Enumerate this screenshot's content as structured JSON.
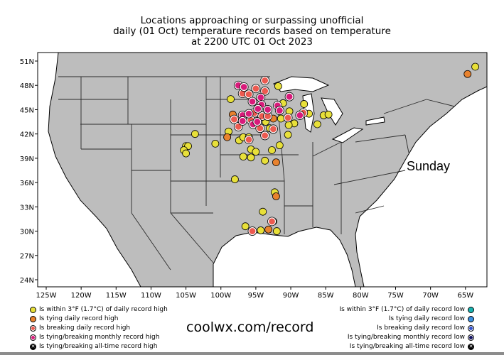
{
  "title": [
    "Locations approaching or surpassing unofficial",
    "daily (01 Oct) temperature records based on temperature",
    "at 2200 UTC 01 Oct 2023"
  ],
  "day_label": "Sunday",
  "brand": "coolwx.com/record",
  "lat_ticks": [
    "51N",
    "48N",
    "45N",
    "42N",
    "39N",
    "36N",
    "33N",
    "30N",
    "27N",
    "24N"
  ],
  "lat_values": [
    51,
    48,
    45,
    42,
    39,
    36,
    33,
    30,
    27,
    24
  ],
  "lon_ticks": [
    "125W",
    "120W",
    "115W",
    "110W",
    "105W",
    "100W",
    "95W",
    "90W",
    "85W",
    "80W",
    "75W",
    "70W",
    "65W"
  ],
  "lon_values": [
    -125,
    -120,
    -115,
    -110,
    -105,
    -100,
    -95,
    -90,
    -85,
    -80,
    -75,
    -70,
    -65
  ],
  "colors": {
    "land": "#bdbdbd",
    "water": "#ffffff",
    "near_high": "#e8e03a",
    "tie_high": "#e8822e",
    "break_high": "#ec5a50",
    "month_high": "#d81b7a",
    "near_low": "#19b3b0",
    "tie_low": "#3b8fe0",
    "break_low": "#2f50d0",
    "month_low": "#101060"
  },
  "legend_high": [
    {
      "label": "Is within 3°F (1.7°C) of daily record high",
      "type": "near_high"
    },
    {
      "label": "Is tying daily record high",
      "type": "tie_high"
    },
    {
      "label": "Is breaking daily record high",
      "type": "break_high"
    },
    {
      "label": "Is tying/breaking monthly record high",
      "type": "month_high"
    },
    {
      "label": "Is tying/breaking all-time record high",
      "type": "alltime"
    }
  ],
  "legend_low": [
    {
      "label": "Is within 3°F (1.7°C) of daily record low",
      "type": "near_low"
    },
    {
      "label": "Is tying daily record low",
      "type": "tie_low"
    },
    {
      "label": "Is breaking daily record low",
      "type": "break_low"
    },
    {
      "label": "Is tying/breaking monthly record low",
      "type": "month_low"
    },
    {
      "label": "Is tying/breaking all-time record low",
      "type": "alltime"
    }
  ],
  "stations": [
    [
      -103.7,
      42.0,
      "near_high"
    ],
    [
      -105.0,
      40.5,
      "near_high"
    ],
    [
      -104.7,
      40.5,
      "near_high"
    ],
    [
      -105.3,
      40.0,
      "near_high"
    ],
    [
      -105.0,
      39.6,
      "near_high"
    ],
    [
      -100.8,
      40.8,
      "near_high"
    ],
    [
      -98.6,
      46.3,
      "near_high"
    ],
    [
      -98.9,
      42.3,
      "near_high"
    ],
    [
      -97.4,
      41.2,
      "near_high"
    ],
    [
      -96.8,
      41.6,
      "near_high"
    ],
    [
      -96.0,
      41.6,
      "near_high"
    ],
    [
      -95.7,
      40.1,
      "near_high"
    ],
    [
      -95.0,
      39.8,
      "near_high"
    ],
    [
      -96.8,
      39.2,
      "near_high"
    ],
    [
      -95.7,
      39.1,
      "near_high"
    ],
    [
      -93.7,
      38.7,
      "near_high"
    ],
    [
      -92.7,
      40.0,
      "near_high"
    ],
    [
      -91.6,
      40.6,
      "near_high"
    ],
    [
      -90.4,
      41.9,
      "near_high"
    ],
    [
      -89.5,
      43.3,
      "near_high"
    ],
    [
      -90.3,
      43.1,
      "near_high"
    ],
    [
      -91.4,
      43.9,
      "near_high"
    ],
    [
      -93.6,
      43.5,
      "near_high"
    ],
    [
      -91.8,
      47.9,
      "near_high"
    ],
    [
      -91.1,
      45.8,
      "near_high"
    ],
    [
      -90.2,
      44.8,
      "near_high"
    ],
    [
      -88.1,
      45.7,
      "near_high"
    ],
    [
      -87.4,
      44.5,
      "near_high"
    ],
    [
      -86.2,
      43.2,
      "near_high"
    ],
    [
      -85.3,
      44.3,
      "near_high"
    ],
    [
      -84.6,
      44.4,
      "near_high"
    ],
    [
      -98.0,
      36.4,
      "near_high"
    ],
    [
      -92.3,
      34.8,
      "near_high"
    ],
    [
      -94.0,
      32.4,
      "near_high"
    ],
    [
      -96.5,
      30.6,
      "near_high"
    ],
    [
      -94.3,
      30.1,
      "near_high"
    ],
    [
      -92.5,
      31.2,
      "near_high"
    ],
    [
      -92.0,
      30.0,
      "near_high"
    ],
    [
      -93.0,
      42.7,
      "near_high"
    ],
    [
      -63.6,
      50.3,
      "near_high"
    ],
    [
      -99.1,
      41.6,
      "tie_high"
    ],
    [
      -92.1,
      38.5,
      "tie_high"
    ],
    [
      -92.1,
      34.3,
      "tie_high"
    ],
    [
      -93.2,
      30.2,
      "tie_high"
    ],
    [
      -98.3,
      44.4,
      "tie_high"
    ],
    [
      -92.5,
      43.9,
      "tie_high"
    ],
    [
      -64.7,
      49.4,
      "tie_high"
    ],
    [
      -95.0,
      47.6,
      "break_high"
    ],
    [
      -93.7,
      48.6,
      "break_high"
    ],
    [
      -96.9,
      47.0,
      "break_high"
    ],
    [
      -96.0,
      46.9,
      "break_high"
    ],
    [
      -93.7,
      47.3,
      "break_high"
    ],
    [
      -88.2,
      44.6,
      "break_high"
    ],
    [
      -98.1,
      43.8,
      "break_high"
    ],
    [
      -95.2,
      44.6,
      "break_high"
    ],
    [
      -94.1,
      44.2,
      "break_high"
    ],
    [
      -93.3,
      44.2,
      "break_high"
    ],
    [
      -90.4,
      44.0,
      "break_high"
    ],
    [
      -97.5,
      42.9,
      "break_high"
    ],
    [
      -95.7,
      43.7,
      "break_high"
    ],
    [
      -94.4,
      42.7,
      "break_high"
    ],
    [
      -92.5,
      42.6,
      "break_high"
    ],
    [
      -93.7,
      41.8,
      "break_high"
    ],
    [
      -96.0,
      41.3,
      "break_high"
    ],
    [
      -95.5,
      30.0,
      "break_high"
    ],
    [
      -92.7,
      31.2,
      "break_high"
    ],
    [
      -97.5,
      48.0,
      "month_high"
    ],
    [
      -96.7,
      47.8,
      "month_high"
    ],
    [
      -94.3,
      46.5,
      "month_high"
    ],
    [
      -95.5,
      46.0,
      "month_high"
    ],
    [
      -94.2,
      45.6,
      "month_high"
    ],
    [
      -94.7,
      45.1,
      "month_high"
    ],
    [
      -93.3,
      45.0,
      "month_high"
    ],
    [
      -91.9,
      45.5,
      "month_high"
    ],
    [
      -91.6,
      44.9,
      "month_high"
    ],
    [
      -90.2,
      46.6,
      "month_high"
    ],
    [
      -88.7,
      44.3,
      "month_high"
    ],
    [
      -96.9,
      44.3,
      "month_high"
    ],
    [
      -96.0,
      44.5,
      "month_high"
    ],
    [
      -96.9,
      43.6,
      "month_high"
    ],
    [
      -95.4,
      43.2,
      "month_high"
    ],
    [
      -94.8,
      43.5,
      "month_high"
    ]
  ]
}
